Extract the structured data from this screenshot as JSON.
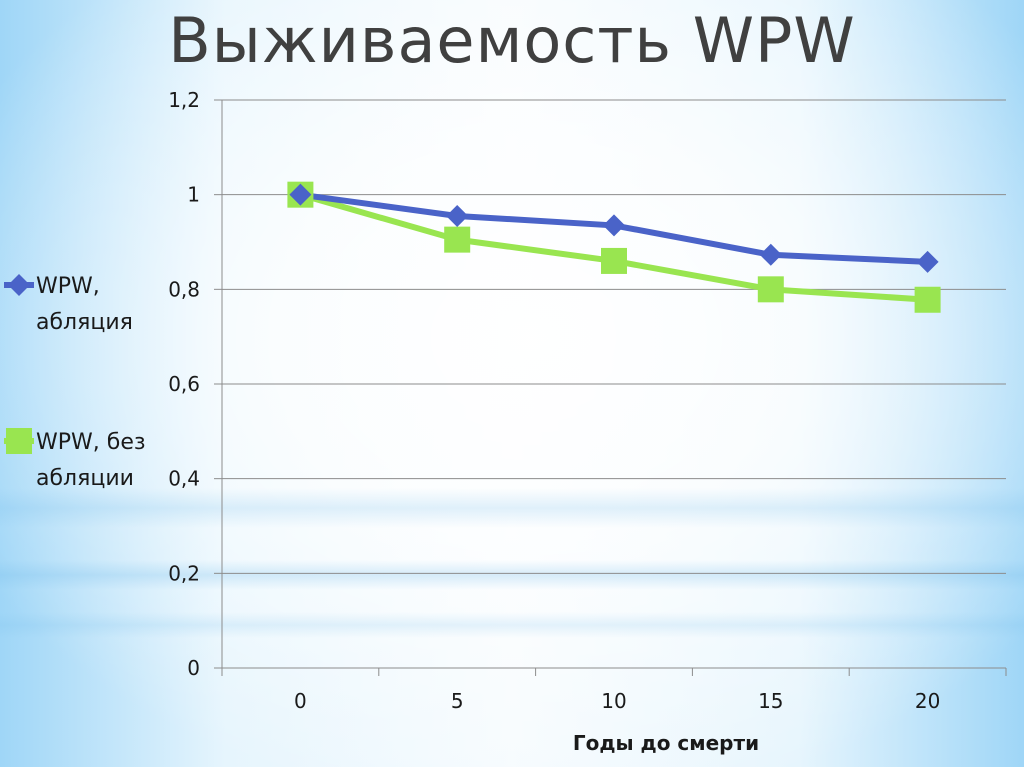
{
  "slide": {
    "title": "Выживаемость WPW"
  },
  "chart_data": {
    "type": "line",
    "title": "Выживаемость WPW",
    "xlabel": "Годы до смерти",
    "ylabel": "",
    "x": [
      0,
      5,
      10,
      15,
      20
    ],
    "categories": [
      "0",
      "5",
      "10",
      "15",
      "20"
    ],
    "ylim": [
      0,
      1.2
    ],
    "yticks": [
      0,
      0.2,
      0.4,
      0.6,
      0.8,
      1,
      1.2
    ],
    "ytick_labels": [
      "0",
      "0,2",
      "0,4",
      "0,6",
      "0,8",
      "1",
      "1,2"
    ],
    "grid": true,
    "legend_position": "left",
    "series": [
      {
        "name": "WPW, абляция",
        "name_lines": [
          "WPW,",
          "абляция"
        ],
        "color": "#4a63c8",
        "marker": "diamond",
        "values": [
          1.0,
          0.955,
          0.935,
          0.873,
          0.858
        ]
      },
      {
        "name": "WPW, без абляции",
        "name_lines": [
          "WPW, без",
          "абляции"
        ],
        "color": "#99e550",
        "marker": "square",
        "values": [
          1.0,
          0.905,
          0.86,
          0.8,
          0.778
        ]
      }
    ]
  }
}
